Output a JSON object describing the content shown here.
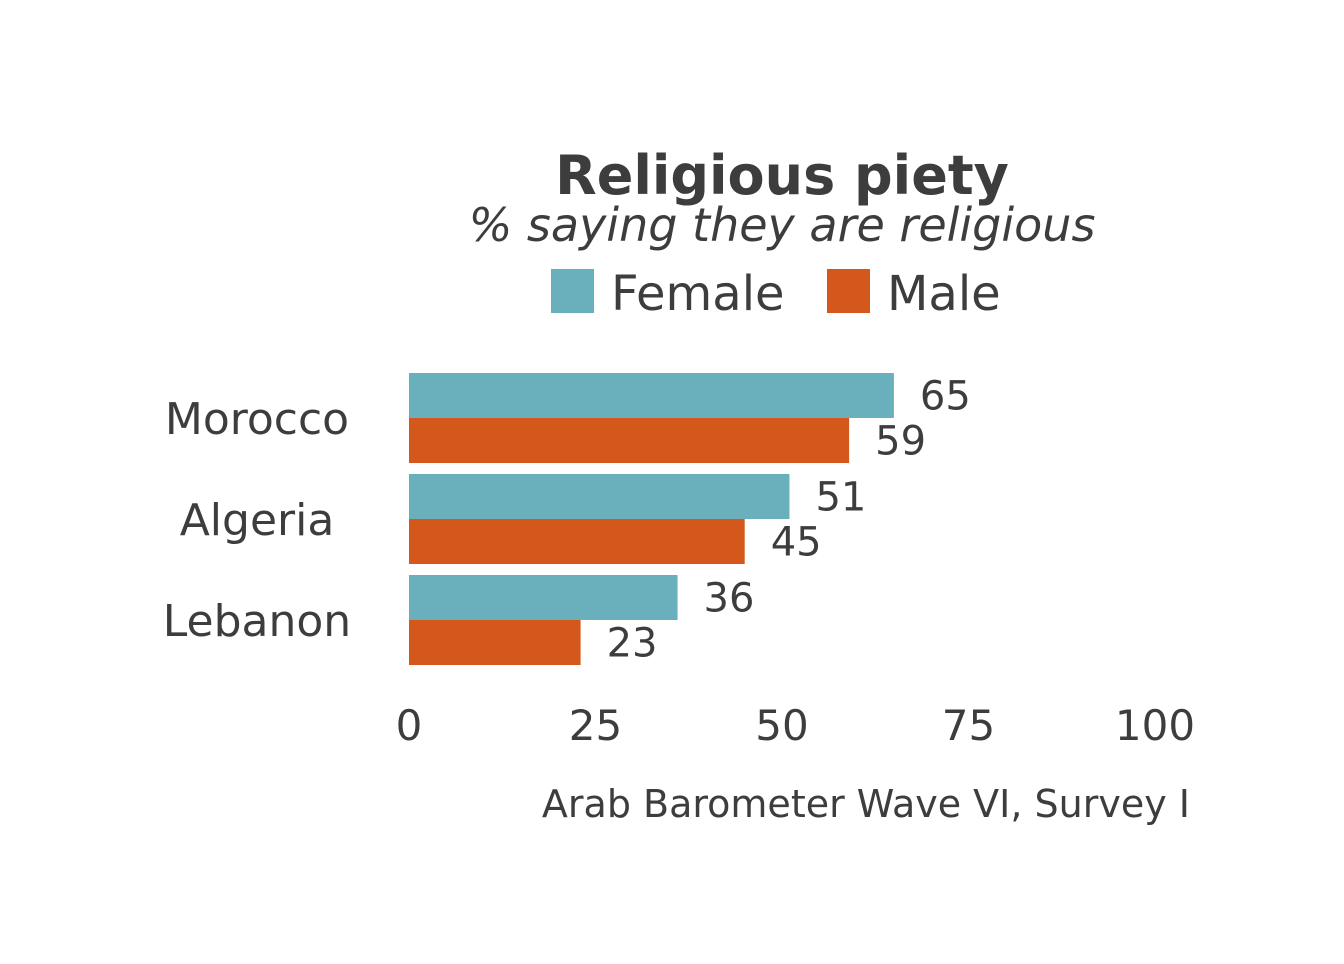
{
  "chart_data": {
    "type": "bar",
    "orientation": "horizontal",
    "title": "Religious piety",
    "subtitle": "% saying they are religious",
    "caption": "Arab Barometer Wave VI, Survey I",
    "categories": [
      "Morocco",
      "Algeria",
      "Lebanon"
    ],
    "series": [
      {
        "name": "Female",
        "color": "#6aafbc",
        "values": [
          65,
          51,
          36
        ]
      },
      {
        "name": "Male",
        "color": "#d4581b",
        "values": [
          59,
          45,
          23
        ]
      }
    ],
    "xlim": [
      0,
      100
    ],
    "xticks": [
      0,
      25,
      50,
      75,
      100
    ],
    "grid": false,
    "legend_position": "top"
  }
}
